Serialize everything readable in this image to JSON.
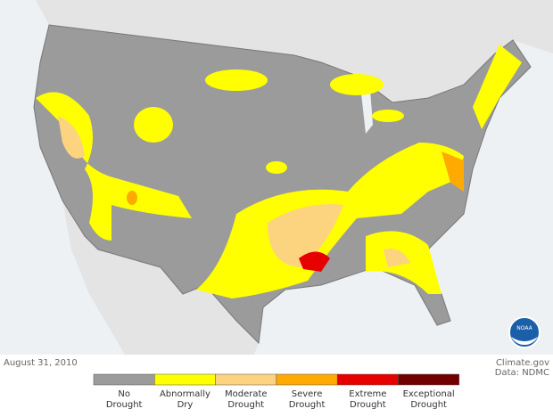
{
  "map": {
    "date": "August 31, 2010",
    "source": "Climate.gov",
    "credit": "Data: NDMC",
    "logo": "NOAA",
    "legend": [
      {
        "label": "No Drought",
        "color": "#9b9b9b"
      },
      {
        "label": "Abnormally Dry",
        "color": "#ffff00"
      },
      {
        "label": "Moderate Drought",
        "color": "#fcd37f"
      },
      {
        "label": "Severe Drought",
        "color": "#ffaa00"
      },
      {
        "label": "Extreme Drought",
        "color": "#e60000"
      },
      {
        "label": "Exceptional Drought",
        "color": "#730000"
      }
    ]
  }
}
